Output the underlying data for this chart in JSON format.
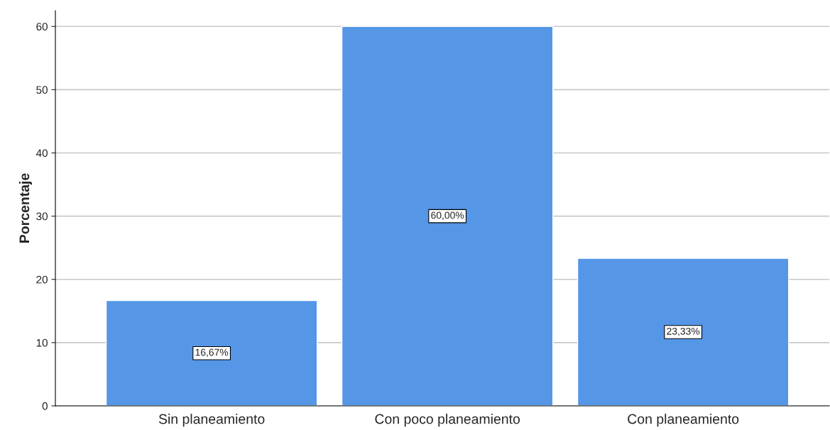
{
  "chart_data": {
    "type": "bar",
    "ylabel": "Porcentaje",
    "categories": [
      "Sin planeamiento",
      "Con poco planeamiento",
      "Con planeamiento"
    ],
    "values": [
      16.67,
      60.0,
      23.33
    ],
    "value_labels": [
      "16,67%",
      "60,00%",
      "23,33%"
    ],
    "color": "#5596e6",
    "ylim": [
      0,
      62.5
    ],
    "yticks": [
      0,
      10,
      20,
      30,
      40,
      50,
      60
    ],
    "grid": "y"
  }
}
